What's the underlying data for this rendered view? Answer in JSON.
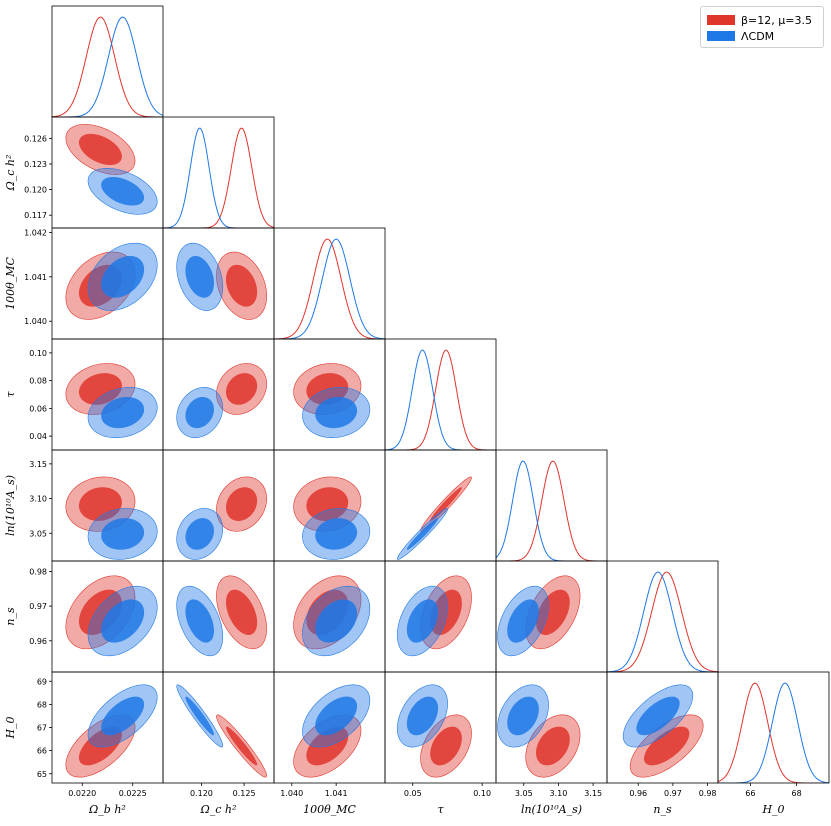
{
  "chart_data": {
    "type": "triangle-corner",
    "legend": [
      {
        "label": "β=12, μ=3.5",
        "color": "#e0352b"
      },
      {
        "label": "ΛCDM",
        "color": "#1f78e6"
      }
    ],
    "parameters": [
      {
        "name": "ombh2",
        "label": "Ω_b h²",
        "range": [
          0.0217,
          0.0228
        ],
        "ticks": [
          "0.0220",
          "0.0225"
        ]
      },
      {
        "name": "omch2",
        "label": "Ω_c h²",
        "range": [
          0.1155,
          0.1285
        ],
        "ticks": [
          "0.120",
          "0.125"
        ],
        "yticks": [
          "0.117",
          "0.120",
          "0.123",
          "0.126"
        ]
      },
      {
        "name": "theta",
        "label": "100θ_MC",
        "range": [
          1.0396,
          1.0421
        ],
        "ticks": [
          "1.040",
          "1.041"
        ],
        "yticks": [
          "1.040",
          "1.041",
          "1.042"
        ]
      },
      {
        "name": "tau",
        "label": "τ",
        "range": [
          0.03,
          0.11
        ],
        "ticks": [
          "0.05",
          "0.10"
        ],
        "yticks": [
          "0.04",
          "0.06",
          "0.08",
          "0.10"
        ]
      },
      {
        "name": "logA",
        "label": "ln(10¹⁰A_s)",
        "range": [
          3.01,
          3.17
        ],
        "ticks": [
          "3.05",
          "3.10",
          "3.15"
        ],
        "yticks": [
          "3.05",
          "3.10",
          "3.15"
        ]
      },
      {
        "name": "ns",
        "label": "n_s",
        "range": [
          0.951,
          0.983
        ],
        "ticks": [
          "0.96",
          "0.97",
          "0.98"
        ],
        "yticks": [
          "0.96",
          "0.97",
          "0.98"
        ]
      },
      {
        "name": "H0",
        "label": "H_0",
        "range": [
          64.6,
          69.4
        ],
        "ticks": [
          "66",
          "68"
        ],
        "yticks": [
          "65",
          "66",
          "67",
          "68",
          "69"
        ]
      }
    ],
    "series": [
      {
        "name": "β=12, μ=3.5",
        "color": "#e0352b",
        "mean": [
          0.02218,
          0.1247,
          1.0408,
          0.074,
          3.092,
          0.9682,
          66.2
        ],
        "sigma": [
          0.00014,
          0.0012,
          0.00031,
          0.0075,
          0.016,
          0.0043,
          0.55
        ]
      },
      {
        "name": "ΛCDM",
        "color": "#1f78e6",
        "mean": [
          0.0224,
          0.1198,
          1.041,
          0.057,
          3.049,
          0.9657,
          67.5
        ],
        "sigma": [
          0.00014,
          0.0011,
          0.00031,
          0.0074,
          0.015,
          0.0041,
          0.55
        ]
      }
    ],
    "correlations": {
      "1-0": [
        -0.45,
        -0.45
      ],
      "2-0": [
        0.35,
        0.35
      ],
      "2-1": [
        -0.3,
        -0.3
      ],
      "3-0": [
        0.2,
        0.2
      ],
      "3-1": [
        0.2,
        0.2
      ],
      "3-2": [
        0.12,
        0.12
      ],
      "4-0": [
        0.1,
        0.1
      ],
      "4-1": [
        0.2,
        0.2
      ],
      "4-2": [
        0.1,
        0.1
      ],
      "4-3": [
        0.97,
        0.97
      ],
      "5-0": [
        0.4,
        0.4
      ],
      "5-1": [
        -0.45,
        -0.45
      ],
      "5-2": [
        0.35,
        0.35
      ],
      "5-3": [
        0.4,
        0.4
      ],
      "5-4": [
        0.45,
        0.45
      ],
      "6-0": [
        0.6,
        0.6
      ],
      "6-1": [
        -0.95,
        -0.95
      ],
      "6-2": [
        0.5,
        0.5
      ],
      "6-3": [
        0.4,
        0.4
      ],
      "6-4": [
        0.35,
        0.35
      ],
      "6-5": [
        0.65,
        0.65
      ]
    }
  }
}
